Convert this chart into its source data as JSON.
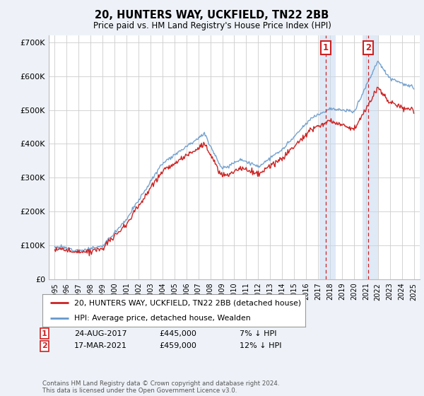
{
  "title": "20, HUNTERS WAY, UCKFIELD, TN22 2BB",
  "subtitle": "Price paid vs. HM Land Registry's House Price Index (HPI)",
  "hpi_label": "HPI: Average price, detached house, Wealden",
  "property_label": "20, HUNTERS WAY, UCKFIELD, TN22 2BB (detached house)",
  "footer": "Contains HM Land Registry data © Crown copyright and database right 2024.\nThis data is licensed under the Open Government Licence v3.0.",
  "annotation1_date": "24-AUG-2017",
  "annotation1_price": "£445,000",
  "annotation1_hpi": "7% ↓ HPI",
  "annotation2_date": "17-MAR-2021",
  "annotation2_price": "£459,000",
  "annotation2_hpi": "12% ↓ HPI",
  "sale1_x": 2017.65,
  "sale1_y": 445000,
  "sale2_x": 2021.21,
  "sale2_y": 459000,
  "ylim": [
    0,
    720000
  ],
  "xlim": [
    1994.5,
    2025.5
  ],
  "yticks": [
    0,
    100000,
    200000,
    300000,
    400000,
    500000,
    600000,
    700000
  ],
  "ytick_labels": [
    "£0",
    "£100K",
    "£200K",
    "£300K",
    "£400K",
    "£500K",
    "£600K",
    "£700K"
  ],
  "hpi_color": "#6699cc",
  "property_color": "#cc2222",
  "background_color": "#eef2f8",
  "plot_bg": "#ffffff",
  "grid_color": "#cccccc",
  "annotation_box_color": "#cc2222",
  "shaded_region_color": "#c8d8f0",
  "xtick_years": [
    1995,
    1996,
    1997,
    1998,
    1999,
    2000,
    2001,
    2002,
    2003,
    2004,
    2005,
    2006,
    2007,
    2008,
    2009,
    2010,
    2011,
    2012,
    2013,
    2014,
    2015,
    2016,
    2017,
    2018,
    2019,
    2020,
    2021,
    2022,
    2023,
    2024,
    2025
  ]
}
